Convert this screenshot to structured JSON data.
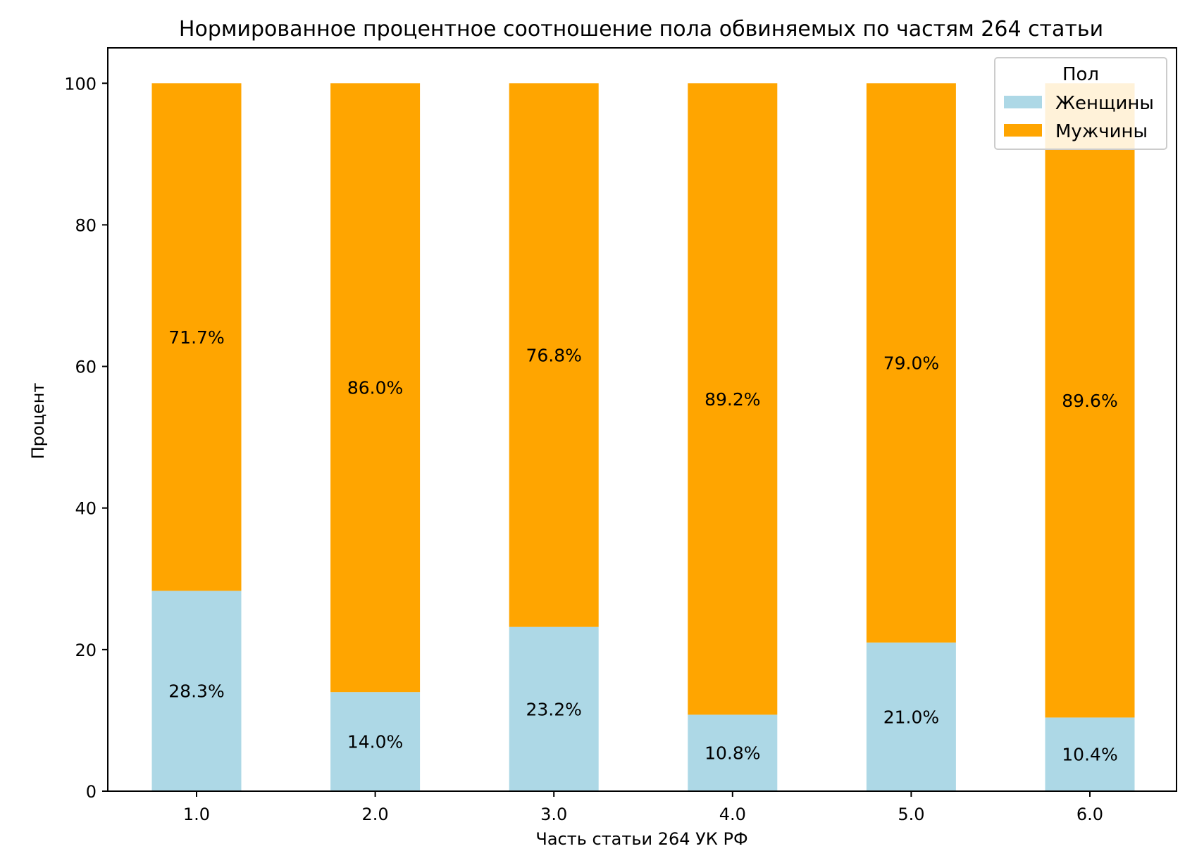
{
  "chart_data": {
    "type": "bar",
    "stacked": true,
    "title": "Нормированное процентное соотношение пола обвиняемых по частям 264 статьи",
    "xlabel": "Часть статьи 264 УК РФ",
    "ylabel": "Процент",
    "categories": [
      "1.0",
      "2.0",
      "3.0",
      "4.0",
      "5.0",
      "6.0"
    ],
    "ylim": [
      0,
      105
    ],
    "yticks": [
      0,
      20,
      40,
      60,
      80,
      100
    ],
    "grid": false,
    "legend": {
      "title": "Пол",
      "placement": "top-right"
    },
    "series": [
      {
        "name": "Женщины",
        "color": "#add8e6",
        "values": [
          28.3,
          14.0,
          23.2,
          10.8,
          21.0,
          10.4
        ],
        "labels": [
          "28.3%",
          "14.0%",
          "23.2%",
          "10.8%",
          "21.0%",
          "10.4%"
        ]
      },
      {
        "name": "Мужчины",
        "color": "#ffa500",
        "values": [
          71.7,
          86.0,
          76.8,
          89.2,
          79.0,
          89.6
        ],
        "labels": [
          "71.7%",
          "86.0%",
          "76.8%",
          "89.2%",
          "79.0%",
          "89.6%"
        ]
      }
    ]
  }
}
